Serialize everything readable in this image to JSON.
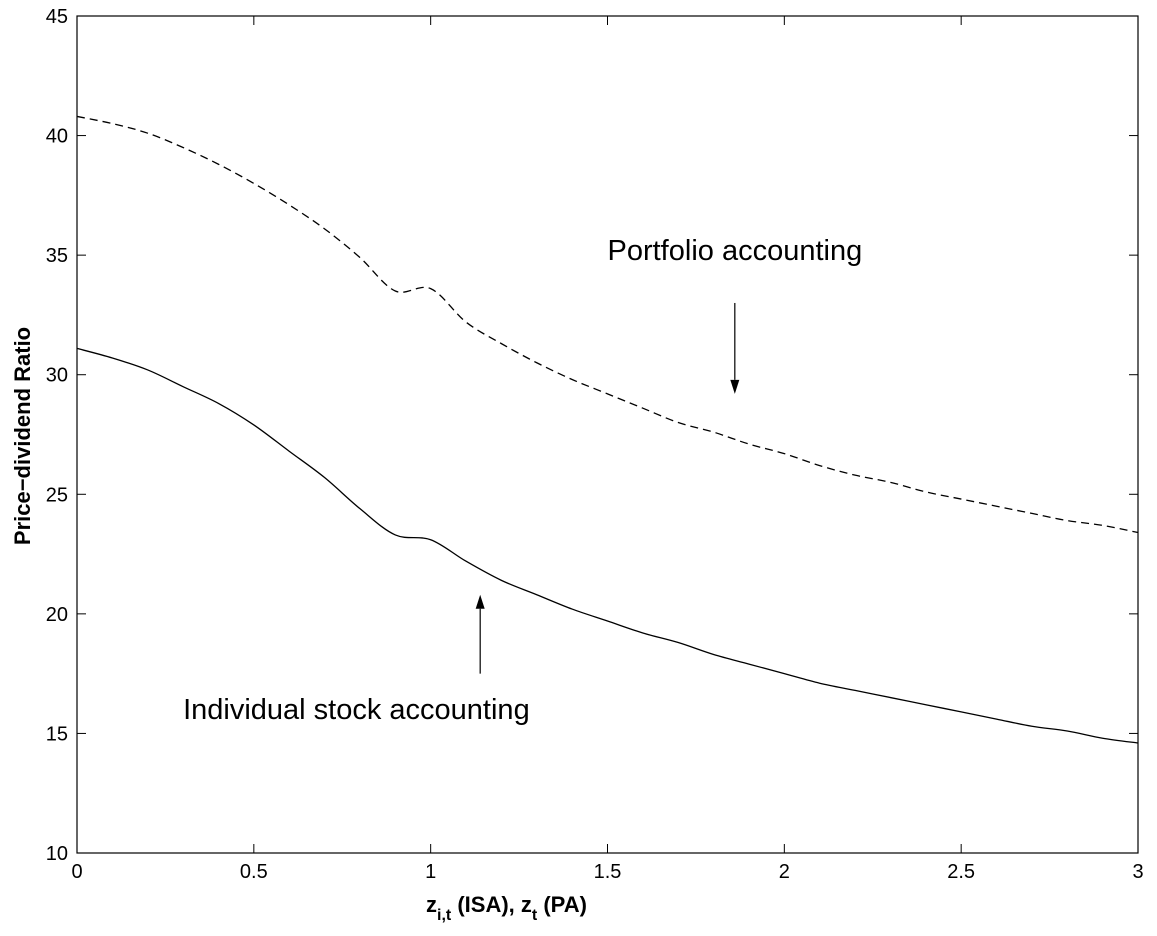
{
  "chart_data": {
    "type": "line",
    "title": "",
    "xlabel": {
      "z": "z",
      "sub1": "i,t",
      "isa": " (ISA), ",
      "z2": "z",
      "sub2": "t",
      "pa": " (PA)"
    },
    "ylabel": "Price−dividend Ratio",
    "xlim": [
      0,
      3
    ],
    "ylim": [
      10,
      45
    ],
    "xticks": [
      0,
      0.5,
      1,
      1.5,
      2,
      2.5,
      3
    ],
    "xtick_labels": [
      "0",
      "0.5",
      "1",
      "1.5",
      "2",
      "2.5",
      "3"
    ],
    "yticks": [
      10,
      15,
      20,
      25,
      30,
      35,
      40,
      45
    ],
    "ytick_labels": [
      "10",
      "15",
      "20",
      "25",
      "30",
      "35",
      "40",
      "45"
    ],
    "grid": false,
    "series": [
      {
        "style": "dashed",
        "x": [
          0,
          0.1,
          0.2,
          0.3,
          0.4,
          0.5,
          0.6,
          0.7,
          0.8,
          0.9,
          1.0,
          1.1,
          1.2,
          1.3,
          1.4,
          1.5,
          1.6,
          1.7,
          1.8,
          1.9,
          2.0,
          2.1,
          2.2,
          2.3,
          2.4,
          2.5,
          2.6,
          2.7,
          2.8,
          2.9,
          3.0
        ],
        "values": [
          40.8,
          40.5,
          40.1,
          39.5,
          38.8,
          38.0,
          37.1,
          36.1,
          34.9,
          33.5,
          33.6,
          32.2,
          31.3,
          30.5,
          29.8,
          29.2,
          28.6,
          28.0,
          27.6,
          27.1,
          26.7,
          26.2,
          25.8,
          25.5,
          25.1,
          24.8,
          24.5,
          24.2,
          23.9,
          23.7,
          23.4
        ]
      },
      {
        "style": "solid",
        "x": [
          0,
          0.1,
          0.2,
          0.3,
          0.4,
          0.5,
          0.6,
          0.7,
          0.8,
          0.9,
          1.0,
          1.1,
          1.2,
          1.3,
          1.4,
          1.5,
          1.6,
          1.7,
          1.8,
          1.9,
          2.0,
          2.1,
          2.2,
          2.3,
          2.4,
          2.5,
          2.6,
          2.7,
          2.8,
          2.9,
          3.0
        ],
        "values": [
          31.1,
          30.7,
          30.2,
          29.5,
          28.8,
          27.9,
          26.8,
          25.7,
          24.4,
          23.3,
          23.1,
          22.2,
          21.4,
          20.8,
          20.2,
          19.7,
          19.2,
          18.8,
          18.3,
          17.9,
          17.5,
          17.1,
          16.8,
          16.5,
          16.2,
          15.9,
          15.6,
          15.3,
          15.1,
          14.8,
          14.6
        ]
      }
    ],
    "annotations": [
      {
        "text": "Portfolio accounting",
        "x": 1.5,
        "y": 34.8,
        "arrow_from": [
          1.86,
          33.0
        ],
        "arrow_to": [
          1.86,
          29.2
        ]
      },
      {
        "text": "Individual stock accounting",
        "x": 0.3,
        "y": 15.6,
        "arrow_from": [
          1.14,
          17.5
        ],
        "arrow_to": [
          1.14,
          20.8
        ]
      }
    ]
  }
}
